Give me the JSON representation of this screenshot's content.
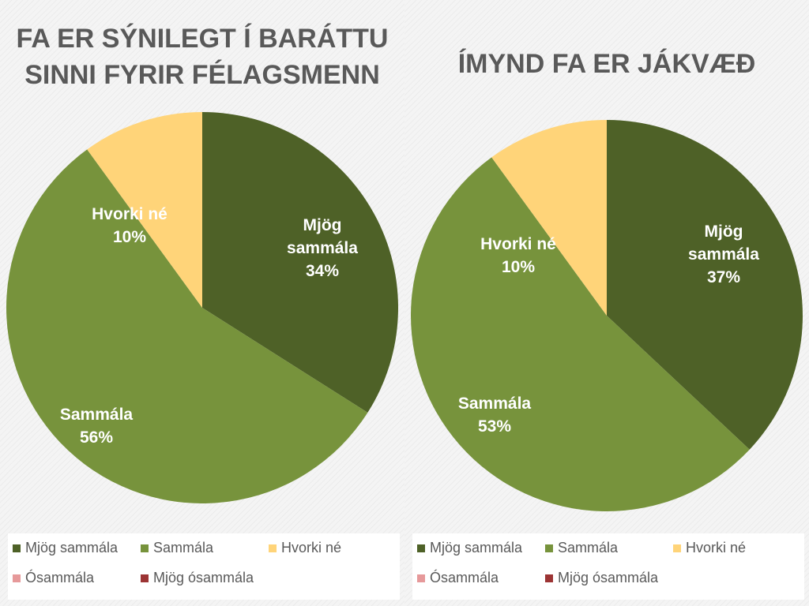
{
  "chart_data": [
    {
      "type": "pie",
      "title_lines": [
        "FA ER SÝNILEGT Í BARÁTTU",
        "SINNI FYRIR FÉLAGSMENN"
      ],
      "slices": [
        {
          "label": "Mjög sammála",
          "value": 34,
          "display": [
            "Mjög",
            "sammála",
            "34%"
          ]
        },
        {
          "label": "Sammála",
          "value": 56,
          "display": [
            "Sammála",
            "56%"
          ]
        },
        {
          "label": "Hvorki né",
          "value": 10,
          "display": [
            "Hvorki né",
            "10%"
          ]
        }
      ],
      "legend": [
        "Mjög sammála",
        "Sammála",
        "Hvorki né",
        "Ósammála",
        "Mjög ósammála"
      ],
      "legend_placement": "bottom"
    },
    {
      "type": "pie",
      "title_lines": [
        "ÍMYND FA ER JÁKVÆÐ"
      ],
      "slices": [
        {
          "label": "Mjög sammála",
          "value": 37,
          "display": [
            "Mjög",
            "sammála",
            "37%"
          ]
        },
        {
          "label": "Sammála",
          "value": 53,
          "display": [
            "Sammála",
            "53%"
          ]
        },
        {
          "label": "Hvorki né",
          "value": 10,
          "display": [
            "Hvorki né",
            "10%"
          ]
        }
      ],
      "legend": [
        "Mjög sammála",
        "Sammála",
        "Hvorki né",
        "Ósammála",
        "Mjög ósammála"
      ],
      "legend_placement": "bottom"
    }
  ],
  "colors": {
    "Mjög sammála": "#4e6127",
    "Sammála": "#77933c",
    "Hvorki né": "#ffd479",
    "Ósammála": "#e6999a",
    "Mjög ósammála": "#9c3434"
  }
}
